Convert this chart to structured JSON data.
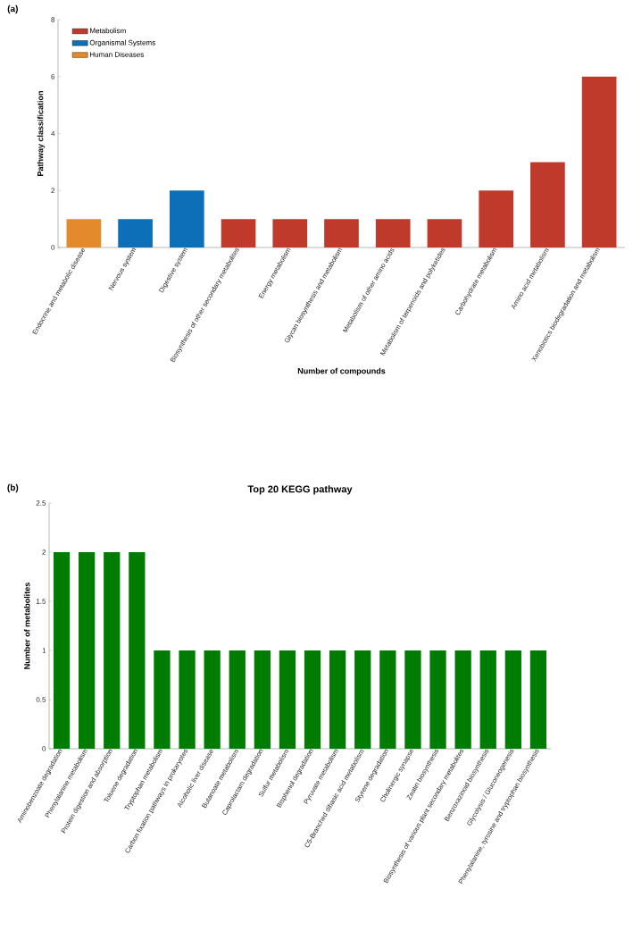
{
  "chart_data": [
    {
      "type": "bar",
      "annotations": [
        "(a)"
      ],
      "xlabel": "Number of compounds",
      "ylabel": "Pathway classification",
      "categories": [
        "Endocrine and metabolic disease",
        "Nervous system",
        "Digestive system",
        "Biosynthesis of other secondary metabolites",
        "Energy metabolism",
        "Glycan biosynthesis and metabolism",
        "Metabolism of other amino acids",
        "Metabolism of terpenoids and polyketides",
        "Carbohydrate metabolism",
        "Amino acid metabolism",
        "Xenobiotics biodegradation and metabolism"
      ],
      "series": [
        {
          "name": "Metabolism",
          "color": "#bf3a2b",
          "values": [
            null,
            null,
            null,
            1,
            1,
            1,
            1,
            1,
            2,
            3,
            6
          ]
        },
        {
          "name": "Organismal Systems",
          "color": "#0d6fb8",
          "values": [
            null,
            1,
            2,
            null,
            null,
            null,
            null,
            null,
            null,
            null,
            null
          ]
        },
        {
          "name": "Human Diseases",
          "color": "#e38b2c",
          "values": [
            1,
            null,
            null,
            null,
            null,
            null,
            null,
            null,
            null,
            null,
            null
          ]
        }
      ],
      "ylim": [
        0,
        8
      ],
      "yticks": [
        0,
        2,
        4,
        6,
        8
      ],
      "legend": "top left"
    },
    {
      "type": "bar",
      "annotations": [
        "(b)"
      ],
      "title": "Top 20 KEGG pathway",
      "ylabel": "Number of metabolites",
      "categories": [
        "Aminobenzoate degradation",
        "Phenylalanine metabolism",
        "Protein digestion and absorption",
        "Toluene degradation",
        "Tryptophan metabolism",
        "Carbon fixation pathways in prokaryotes",
        "Alcoholic liver disease",
        "Butanoate metabolism",
        "Caprolactam degradation",
        "Sulfur metabolism",
        "Bisphenol degradation",
        "Pyruvate metabolism",
        "C5-Branched dibasic acid metabolism",
        "Styrene degradation",
        "Cholinergic synapse",
        "Zeatin biosynthesis",
        "Biosynthesis of various plant secondary metabolites",
        "Benzoxazinoid biosynthesis",
        "Glycolysis / Gluconeogenesis",
        "Phenylalanine, tyrosine and tryptophan biosynthesis"
      ],
      "values": [
        2,
        2,
        2,
        2,
        1,
        1,
        1,
        1,
        1,
        1,
        1,
        1,
        1,
        1,
        1,
        1,
        1,
        1,
        1,
        1
      ],
      "color": "#007d00",
      "ylim": [
        0,
        2.5
      ],
      "yticks": [
        0,
        0.5,
        1,
        1.5,
        2,
        2.5
      ]
    }
  ]
}
